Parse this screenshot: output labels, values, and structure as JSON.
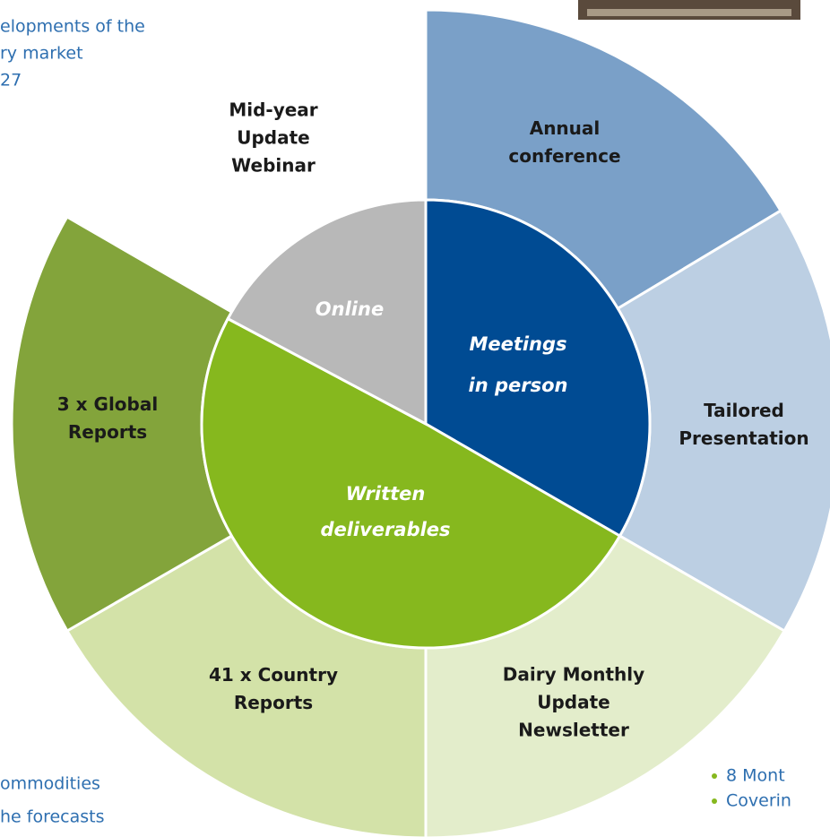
{
  "inner_ring": [
    {
      "lines": [
        "Meetings",
        "in person"
      ]
    },
    {
      "lines": [
        "Written",
        "deliverables"
      ]
    },
    {
      "lines": [
        "Online"
      ]
    }
  ],
  "outer_ring": [
    {
      "lines": [
        "Annual",
        "conference"
      ]
    },
    {
      "lines": [
        "Tailored",
        "Presentation"
      ]
    },
    {
      "lines": [
        "Dairy Monthly",
        "Update",
        "Newsletter"
      ]
    },
    {
      "lines": [
        "41 x Country",
        "Reports"
      ]
    },
    {
      "lines": [
        "3 x Global",
        "Reports"
      ]
    },
    {
      "lines": [
        "Mid-year",
        "Update",
        "Webinar"
      ]
    }
  ],
  "side_text": {
    "top_left": [
      "elopments of the",
      "ry market",
      "27"
    ],
    "bottom_left": [
      "ommodities",
      "he forecasts"
    ],
    "bottom_right": [
      "8 Mont",
      "Coverin"
    ]
  }
}
